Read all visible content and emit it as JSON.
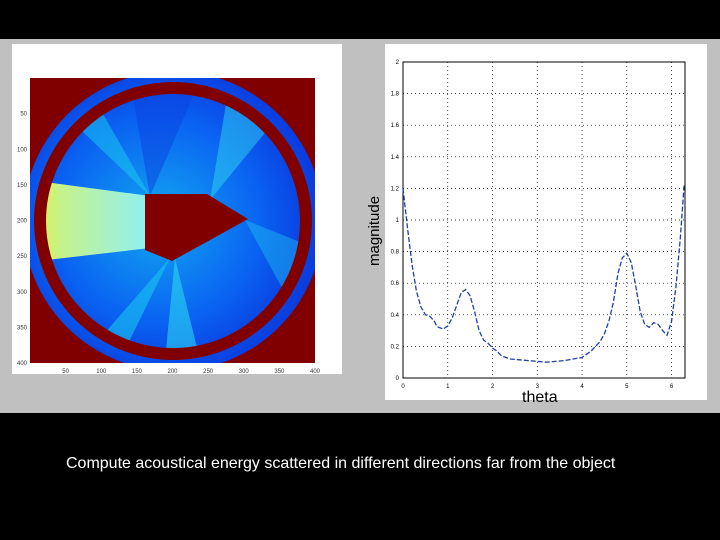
{
  "caption": "Compute acoustical energy scattered in different directions far from the object",
  "colors": {
    "background": "#000000",
    "figure_background": "#c0c0c0",
    "scatterer": "#800000",
    "curve": "#1f3fa8"
  },
  "heatmap": {
    "x_ticks": [
      "50",
      "100",
      "150",
      "200",
      "250",
      "300",
      "350",
      "400"
    ],
    "y_ticks": [
      "50",
      "100",
      "150",
      "200",
      "250",
      "300",
      "350",
      "400"
    ]
  },
  "chart_data": {
    "type": "line",
    "xlabel": "theta",
    "ylabel": "magnitude",
    "xlim": [
      0,
      6.3
    ],
    "ylim": [
      0,
      2
    ],
    "grid": true,
    "x_ticks": [
      "0",
      "1",
      "2",
      "3",
      "4",
      "5",
      "6"
    ],
    "y_ticks": [
      "0",
      "0.2",
      "0.4",
      "0.6",
      "0.8",
      "1",
      "1.2",
      "1.4",
      "1.6",
      "1.8",
      "2"
    ],
    "series": [
      {
        "x": [
          0.0,
          0.1,
          0.2,
          0.3,
          0.4,
          0.5,
          0.6,
          0.7,
          0.75,
          0.8,
          0.9,
          1.0,
          1.1,
          1.2,
          1.3,
          1.4,
          1.5,
          1.6,
          1.7,
          1.8,
          1.9,
          2.0,
          2.1,
          2.2,
          2.3,
          2.4,
          2.6,
          2.8,
          3.0,
          3.2,
          3.4,
          3.6,
          3.8,
          4.0,
          4.1,
          4.2,
          4.3,
          4.4,
          4.5,
          4.6,
          4.7,
          4.8,
          4.9,
          5.0,
          5.1,
          5.2,
          5.3,
          5.4,
          5.5,
          5.6,
          5.7,
          5.8,
          5.9,
          6.0,
          6.1,
          6.2,
          6.28
        ],
        "y": [
          1.2,
          0.95,
          0.72,
          0.55,
          0.45,
          0.4,
          0.39,
          0.36,
          0.33,
          0.32,
          0.31,
          0.33,
          0.38,
          0.46,
          0.54,
          0.56,
          0.52,
          0.42,
          0.3,
          0.24,
          0.22,
          0.19,
          0.17,
          0.14,
          0.13,
          0.12,
          0.115,
          0.11,
          0.105,
          0.1,
          0.105,
          0.11,
          0.12,
          0.13,
          0.15,
          0.17,
          0.2,
          0.23,
          0.28,
          0.36,
          0.48,
          0.66,
          0.76,
          0.79,
          0.73,
          0.58,
          0.42,
          0.34,
          0.32,
          0.35,
          0.34,
          0.3,
          0.27,
          0.36,
          0.58,
          0.9,
          1.22
        ]
      }
    ]
  }
}
